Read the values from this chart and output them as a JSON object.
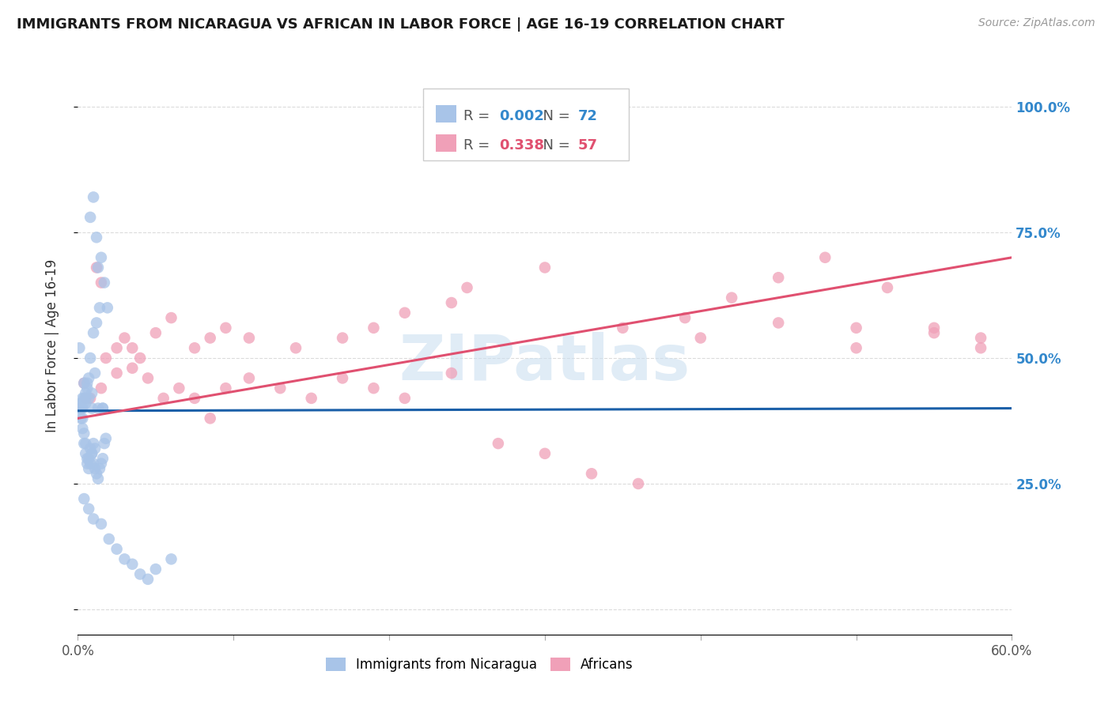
{
  "title": "IMMIGRANTS FROM NICARAGUA VS AFRICAN IN LABOR FORCE | AGE 16-19 CORRELATION CHART",
  "source_text": "Source: ZipAtlas.com",
  "ylabel": "In Labor Force | Age 16-19",
  "xlim": [
    0.0,
    0.6
  ],
  "ylim": [
    -0.05,
    1.1
  ],
  "legend": {
    "blue_r": "0.002",
    "blue_n": "72",
    "pink_r": "0.338",
    "pink_n": "57"
  },
  "blue_color": "#a8c4e8",
  "pink_color": "#f0a0b8",
  "blue_line_color": "#1a5fa8",
  "pink_line_color": "#e05070",
  "right_axis_color": "#3388cc",
  "blue_scatter_x": [
    0.005,
    0.008,
    0.01,
    0.012,
    0.003,
    0.004,
    0.006,
    0.002,
    0.003,
    0.005,
    0.006,
    0.007,
    0.009,
    0.011,
    0.013,
    0.015,
    0.017,
    0.019,
    0.004,
    0.002,
    0.001,
    0.001,
    0.003,
    0.005,
    0.007,
    0.008,
    0.01,
    0.012,
    0.014,
    0.016,
    0.002,
    0.003,
    0.004,
    0.005,
    0.006,
    0.007,
    0.008,
    0.009,
    0.01,
    0.011,
    0.002,
    0.003,
    0.004,
    0.005,
    0.006,
    0.007,
    0.008,
    0.009,
    0.01,
    0.011,
    0.012,
    0.013,
    0.014,
    0.015,
    0.016,
    0.017,
    0.018,
    0.016,
    0.013,
    0.009,
    0.004,
    0.007,
    0.01,
    0.015,
    0.02,
    0.025,
    0.03,
    0.035,
    0.04,
    0.045,
    0.05,
    0.06
  ],
  "blue_scatter_y": [
    0.42,
    0.78,
    0.82,
    0.74,
    0.4,
    0.42,
    0.45,
    0.4,
    0.41,
    0.43,
    0.44,
    0.42,
    0.43,
    0.47,
    0.68,
    0.7,
    0.65,
    0.6,
    0.45,
    0.41,
    0.4,
    0.52,
    0.42,
    0.41,
    0.46,
    0.5,
    0.55,
    0.57,
    0.6,
    0.4,
    0.4,
    0.38,
    0.35,
    0.33,
    0.3,
    0.28,
    0.29,
    0.31,
    0.33,
    0.32,
    0.38,
    0.36,
    0.33,
    0.31,
    0.29,
    0.3,
    0.32,
    0.31,
    0.29,
    0.28,
    0.27,
    0.26,
    0.28,
    0.29,
    0.3,
    0.33,
    0.34,
    0.4,
    0.4,
    0.4,
    0.22,
    0.2,
    0.18,
    0.17,
    0.14,
    0.12,
    0.1,
    0.09,
    0.07,
    0.06,
    0.08,
    0.1
  ],
  "pink_scatter_x": [
    0.004,
    0.008,
    0.012,
    0.015,
    0.018,
    0.025,
    0.03,
    0.035,
    0.04,
    0.05,
    0.06,
    0.075,
    0.085,
    0.095,
    0.11,
    0.14,
    0.17,
    0.19,
    0.21,
    0.24,
    0.005,
    0.015,
    0.025,
    0.035,
    0.045,
    0.055,
    0.065,
    0.075,
    0.085,
    0.095,
    0.11,
    0.13,
    0.15,
    0.17,
    0.19,
    0.21,
    0.24,
    0.27,
    0.3,
    0.33,
    0.36,
    0.39,
    0.42,
    0.45,
    0.48,
    0.52,
    0.55,
    0.58,
    0.25,
    0.3,
    0.35,
    0.4,
    0.45,
    0.5,
    0.55,
    0.58,
    0.5
  ],
  "pink_scatter_y": [
    0.45,
    0.42,
    0.68,
    0.65,
    0.5,
    0.52,
    0.54,
    0.52,
    0.5,
    0.55,
    0.58,
    0.52,
    0.54,
    0.56,
    0.54,
    0.52,
    0.54,
    0.56,
    0.59,
    0.61,
    0.42,
    0.44,
    0.47,
    0.48,
    0.46,
    0.42,
    0.44,
    0.42,
    0.38,
    0.44,
    0.46,
    0.44,
    0.42,
    0.46,
    0.44,
    0.42,
    0.47,
    0.33,
    0.31,
    0.27,
    0.25,
    0.58,
    0.62,
    0.66,
    0.7,
    0.64,
    0.56,
    0.54,
    0.64,
    0.68,
    0.56,
    0.54,
    0.57,
    0.56,
    0.55,
    0.52,
    0.52
  ],
  "blue_trend_x": [
    0.0,
    0.6
  ],
  "blue_trend_y": [
    0.395,
    0.4
  ],
  "pink_trend_x": [
    0.0,
    0.6
  ],
  "pink_trend_y": [
    0.38,
    0.7
  ],
  "background_color": "#ffffff",
  "grid_color": "#cccccc",
  "title_color": "#1a1a1a",
  "right_tick_color": "#3388cc",
  "watermark_color": "#cce0f0"
}
